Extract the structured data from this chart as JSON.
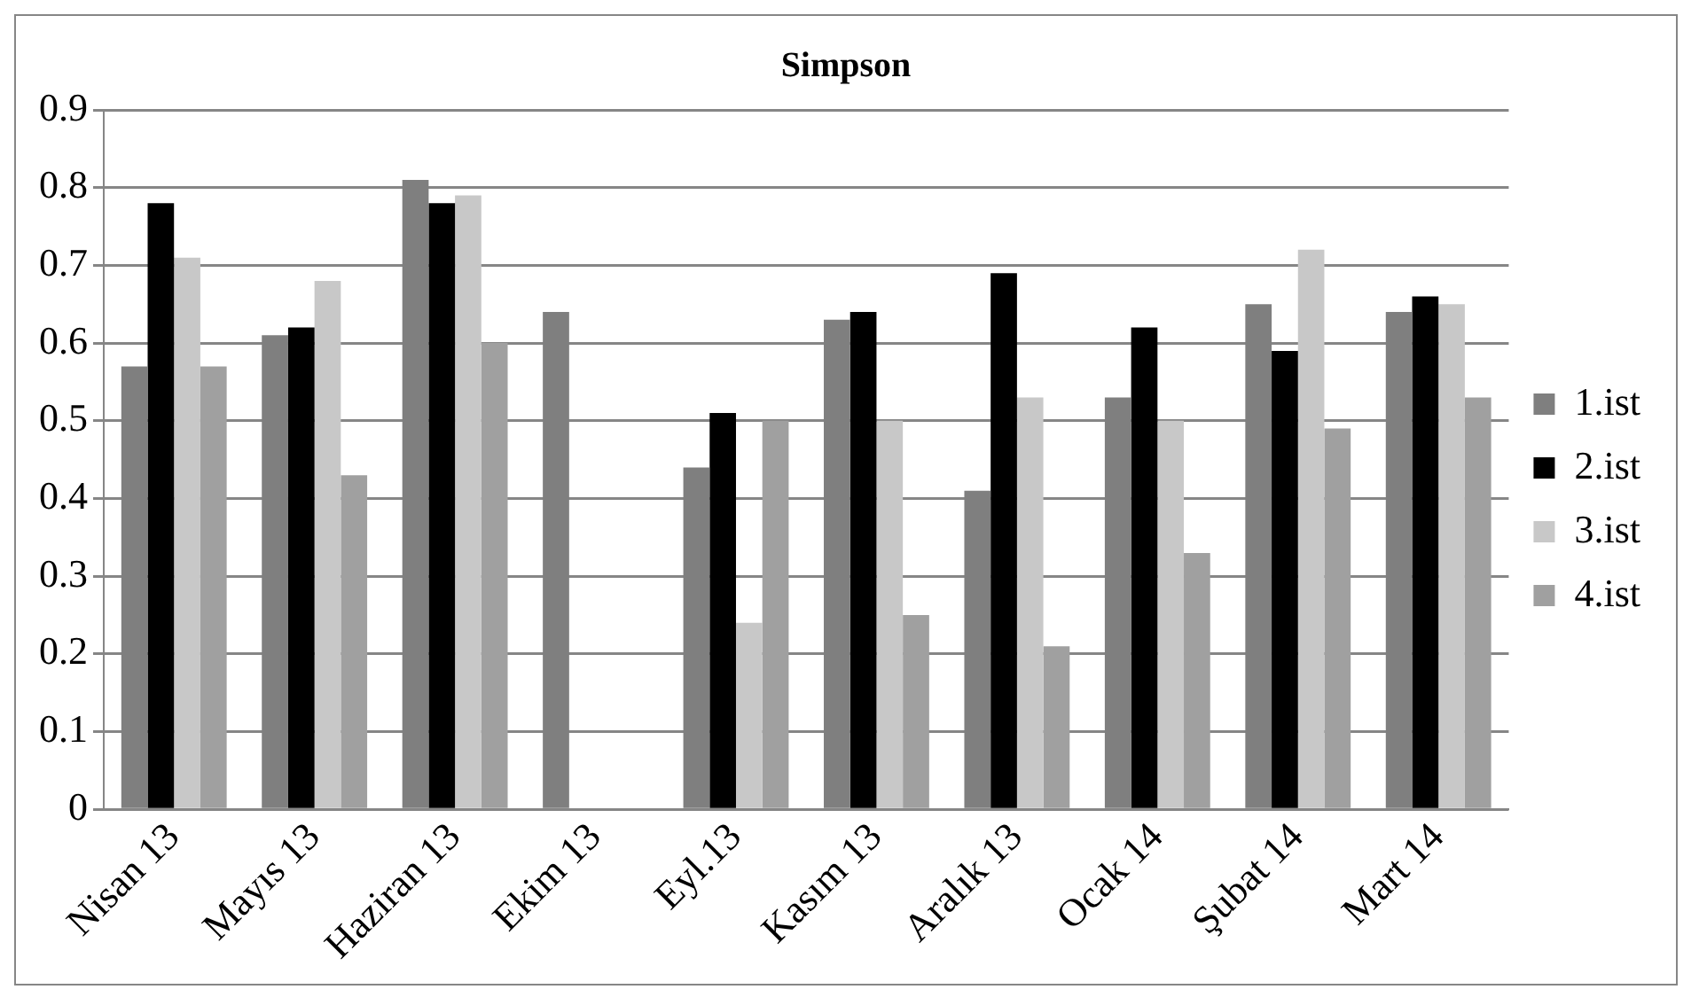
{
  "chart_data": {
    "type": "bar",
    "title": "Simpson",
    "categories": [
      "Nisan 13",
      "Mayıs 13",
      "Haziran 13",
      "Ekim 13",
      "Eyl.13",
      "Kasım 13",
      "Aralık 13",
      "Ocak 14",
      "Şubat 14",
      "Mart 14"
    ],
    "series": [
      {
        "name": "1.ist",
        "color": "#7f7f7f",
        "values": [
          0.57,
          0.61,
          0.81,
          0.64,
          0.44,
          0.63,
          0.41,
          0.53,
          0.65,
          0.64
        ]
      },
      {
        "name": "2.ist",
        "color": "#000000",
        "values": [
          0.78,
          0.62,
          0.78,
          null,
          0.51,
          0.64,
          0.69,
          0.62,
          0.59,
          0.66
        ]
      },
      {
        "name": "3.ist",
        "color": "#c8c8c8",
        "values": [
          0.71,
          0.68,
          0.79,
          null,
          0.24,
          0.5,
          0.53,
          0.5,
          0.72,
          0.65
        ]
      },
      {
        "name": "4.ist",
        "color": "#a0a0a0",
        "values": [
          0.57,
          0.43,
          0.6,
          null,
          0.5,
          0.25,
          0.21,
          0.33,
          0.49,
          0.53
        ]
      }
    ],
    "ylim": [
      0,
      0.9
    ],
    "yticks": [
      0,
      0.1,
      0.2,
      0.3,
      0.4,
      0.5,
      0.6,
      0.7,
      0.8,
      0.9
    ],
    "grid": "y",
    "legend": "right"
  }
}
